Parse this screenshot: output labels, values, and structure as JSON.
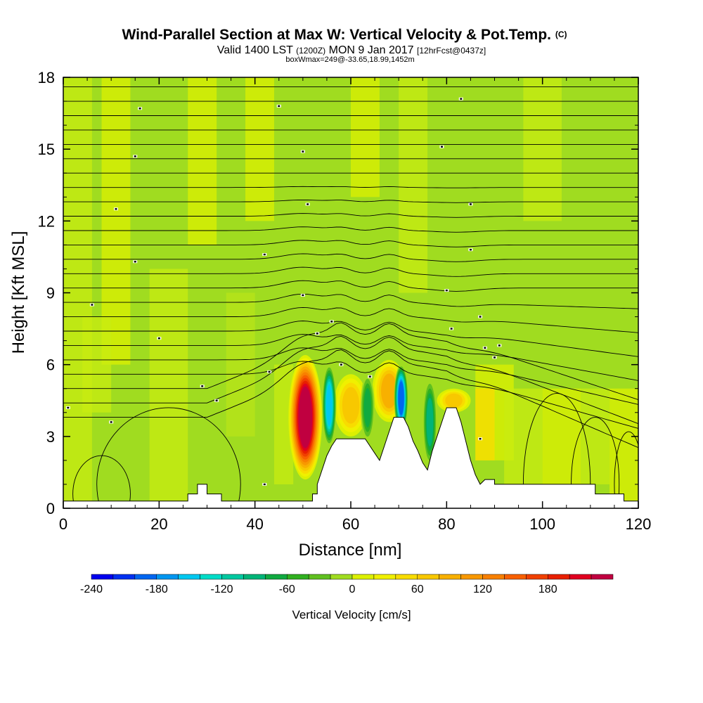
{
  "chart_data": {
    "type": "heatmap",
    "title_main": "Wind-Parallel Section at Max W: Vertical Velocity & Pot.Temp.",
    "title_mark": "(C)",
    "subtitle_a": "Valid 1400 LST",
    "subtitle_b": "(1200Z)",
    "subtitle_c": "MON 9 Jan 2017",
    "subtitle_d": "[12hrFcst@0437z]",
    "subtitle2": "boxWmax=249@-33.65,18.99,1452m",
    "xlabel": "Distance [nm]",
    "ylabel": "Height [Kft MSL]",
    "xlim": [
      0,
      120
    ],
    "ylim": [
      0,
      18
    ],
    "x_ticks": [
      "0",
      "20",
      "40",
      "60",
      "80",
      "100",
      "120"
    ],
    "y_ticks": [
      "0",
      "3",
      "6",
      "9",
      "12",
      "15",
      "18"
    ],
    "colorbar": {
      "label": "Vertical Velocity [cm/s]",
      "range": [
        -240,
        240
      ],
      "step": 20,
      "tick_labels": [
        "-240",
        "-180",
        "-120",
        "-60",
        "0",
        "60",
        "120",
        "180"
      ],
      "colors": [
        "#0000ee",
        "#0030f0",
        "#0066f0",
        "#0096f0",
        "#00c8f0",
        "#00dcc8",
        "#00c8a0",
        "#00b478",
        "#10aa40",
        "#30b020",
        "#60c020",
        "#a0dc20",
        "#dcf000",
        "#f0f000",
        "#f8dc00",
        "#f8c800",
        "#f8b000",
        "#f89800",
        "#f88000",
        "#f86000",
        "#f04000",
        "#e82000",
        "#e00020",
        "#c00040"
      ]
    },
    "terrain_kft": [
      [
        0,
        0.3
      ],
      [
        26,
        0.3
      ],
      [
        26,
        0.6
      ],
      [
        28,
        0.6
      ],
      [
        28,
        1.0
      ],
      [
        30,
        1.0
      ],
      [
        30,
        0.6
      ],
      [
        33,
        0.6
      ],
      [
        33,
        0.3
      ],
      [
        52,
        0.3
      ],
      [
        52,
        0.6
      ],
      [
        53,
        0.6
      ],
      [
        53,
        1.0
      ],
      [
        54,
        1.6
      ],
      [
        55,
        2.2
      ],
      [
        56,
        2.6
      ],
      [
        57,
        2.9
      ],
      [
        63,
        2.9
      ],
      [
        64,
        2.6
      ],
      [
        65,
        2.3
      ],
      [
        66,
        2.0
      ],
      [
        67,
        2.6
      ],
      [
        68,
        3.2
      ],
      [
        69,
        3.8
      ],
      [
        71,
        3.8
      ],
      [
        72,
        3.4
      ],
      [
        73,
        2.8
      ],
      [
        74,
        2.4
      ],
      [
        75,
        1.9
      ],
      [
        76,
        1.6
      ],
      [
        77,
        2.4
      ],
      [
        78,
        3.0
      ],
      [
        79,
        3.6
      ],
      [
        80,
        4.2
      ],
      [
        82,
        4.2
      ],
      [
        83,
        3.6
      ],
      [
        84,
        2.8
      ],
      [
        85,
        2.0
      ],
      [
        86,
        1.4
      ],
      [
        87,
        1.0
      ],
      [
        88,
        1.2
      ],
      [
        90,
        1.2
      ],
      [
        90,
        1.0
      ],
      [
        100,
        1.0
      ],
      [
        111,
        1.0
      ],
      [
        111,
        0.6
      ],
      [
        117,
        0.6
      ],
      [
        117,
        0.3
      ],
      [
        120,
        0.3
      ]
    ],
    "updrafts": [
      {
        "x": 50.5,
        "z_bottom": 1.2,
        "z_top": 6.4,
        "w": 249
      },
      {
        "x": 60,
        "z_bottom": 3.0,
        "z_top": 5.6,
        "w": 70
      },
      {
        "x": 68,
        "z_bottom": 3.6,
        "z_top": 6.2,
        "w": 100
      },
      {
        "x": 81.5,
        "z_bottom": 4.0,
        "z_top": 5.0,
        "w": 80
      }
    ],
    "downdrafts": [
      {
        "x": 55.5,
        "z_bottom": 2.6,
        "z_top": 6.0,
        "w": -160
      },
      {
        "x": 63.5,
        "z_bottom": 2.8,
        "z_top": 5.6,
        "w": -80
      },
      {
        "x": 70.5,
        "z_bottom": 3.2,
        "z_top": 6.0,
        "w": -200
      },
      {
        "x": 76.5,
        "z_bottom": 1.8,
        "z_top": 5.4,
        "w": -90
      }
    ],
    "theta_labels_kft": [
      {
        "x": 1,
        "z": 4.2
      },
      {
        "x": 10,
        "z": 3.6
      },
      {
        "x": 6,
        "z": 8.5
      },
      {
        "x": 11,
        "z": 12.5
      },
      {
        "x": 15,
        "z": 14.7
      },
      {
        "x": 16,
        "z": 16.7
      },
      {
        "x": 15,
        "z": 10.3
      },
      {
        "x": 20,
        "z": 7.1
      },
      {
        "x": 29,
        "z": 5.1
      },
      {
        "x": 32,
        "z": 4.5
      },
      {
        "x": 42,
        "z": 10.6
      },
      {
        "x": 43,
        "z": 5.7
      },
      {
        "x": 45,
        "z": 16.8
      },
      {
        "x": 50,
        "z": 14.9
      },
      {
        "x": 51,
        "z": 12.7
      },
      {
        "x": 50,
        "z": 8.9
      },
      {
        "x": 53,
        "z": 7.3
      },
      {
        "x": 56,
        "z": 7.8
      },
      {
        "x": 58,
        "z": 6.0
      },
      {
        "x": 64,
        "z": 5.5
      },
      {
        "x": 79,
        "z": 15.1
      },
      {
        "x": 80,
        "z": 9.1
      },
      {
        "x": 81,
        "z": 7.5
      },
      {
        "x": 83,
        "z": 17.1
      },
      {
        "x": 85,
        "z": 12.7
      },
      {
        "x": 85,
        "z": 10.8
      },
      {
        "x": 87,
        "z": 8.0
      },
      {
        "x": 88,
        "z": 6.7
      },
      {
        "x": 90,
        "z": 6.3
      },
      {
        "x": 91,
        "z": 6.8
      },
      {
        "x": 87,
        "z": 2.9
      },
      {
        "x": 42,
        "z": 1.0
      }
    ]
  }
}
